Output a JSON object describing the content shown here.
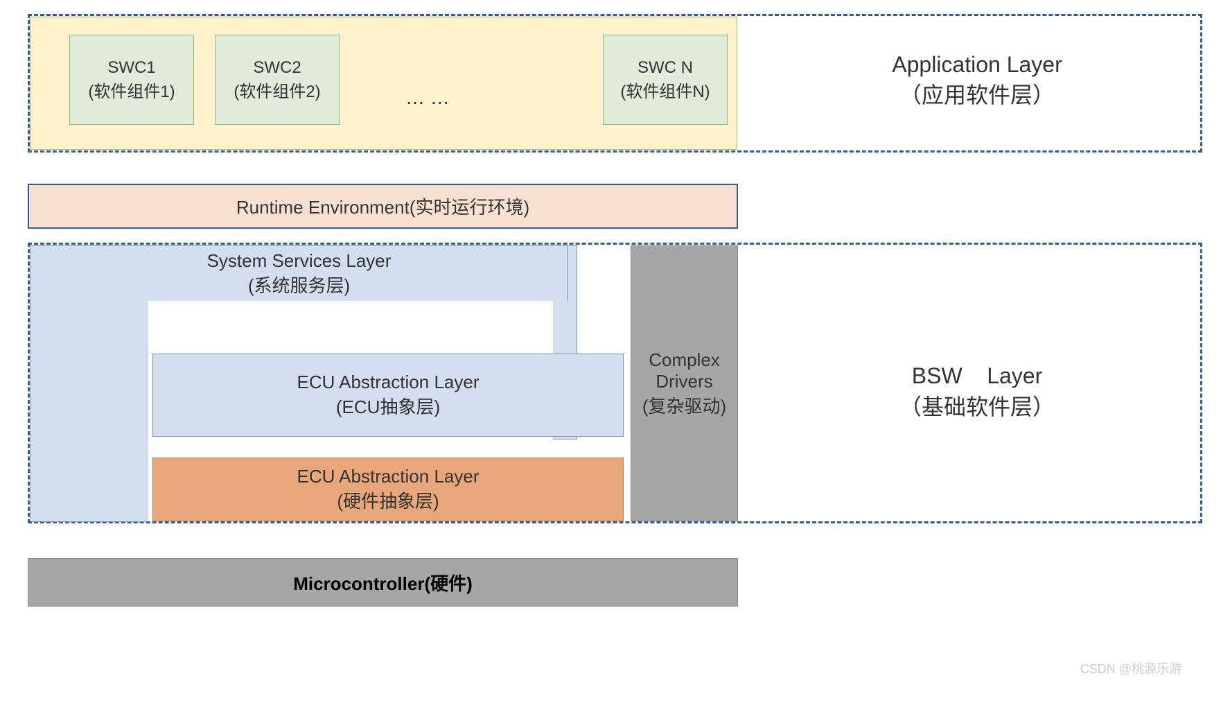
{
  "diagram": {
    "type": "layered-architecture",
    "colors": {
      "dashed_border": "#2e5c9e",
      "app_bg": "#fdf2cc",
      "app_border": "#c9a94f",
      "swc_bg": "#e0ecd9",
      "swc_border": "#8fb77e",
      "rte_bg": "#f9e1d2",
      "blue_layer_bg": "#d3deee",
      "blue_layer_border": "#7a95c0",
      "orange_bg": "#e8a77a",
      "orange_border": "#b8824f",
      "gray_bg": "#a6a6a6",
      "gray_border": "#888888",
      "page_bg": "#ffffff"
    },
    "fonts": {
      "label_size_pt": 26,
      "title_size_pt": 32,
      "swc_size_pt": 24
    },
    "application": {
      "label_en": "Application Layer",
      "label_cn": "（应用软件层）",
      "swc": [
        {
          "title": "SWC1",
          "sub": "(软件组件1)"
        },
        {
          "title": "SWC2",
          "sub": "(软件组件2)"
        },
        {
          "title": "SWC N",
          "sub": "(软件组件N)"
        }
      ],
      "ellipsis": "… …"
    },
    "rte": {
      "label": "Runtime Environment(实时运行环境)"
    },
    "bsw": {
      "label_en": "BSW    Layer",
      "label_cn": "（基础软件层）",
      "system_services": {
        "title": "System Services Layer",
        "sub": "(系统服务层)"
      },
      "ecu_abstraction": {
        "title": "ECU Abstraction Layer",
        "sub": "(ECU抽象层)"
      },
      "hw_abstraction": {
        "title": "ECU Abstraction Layer",
        "sub": "(硬件抽象层)"
      },
      "complex_drivers": {
        "l1": "Complex",
        "l2": "Drivers",
        "l3": "(复杂驱动)"
      }
    },
    "mcu": {
      "label": "Microcontroller(硬件)"
    },
    "watermark": "CSDN @桃源乐游"
  }
}
